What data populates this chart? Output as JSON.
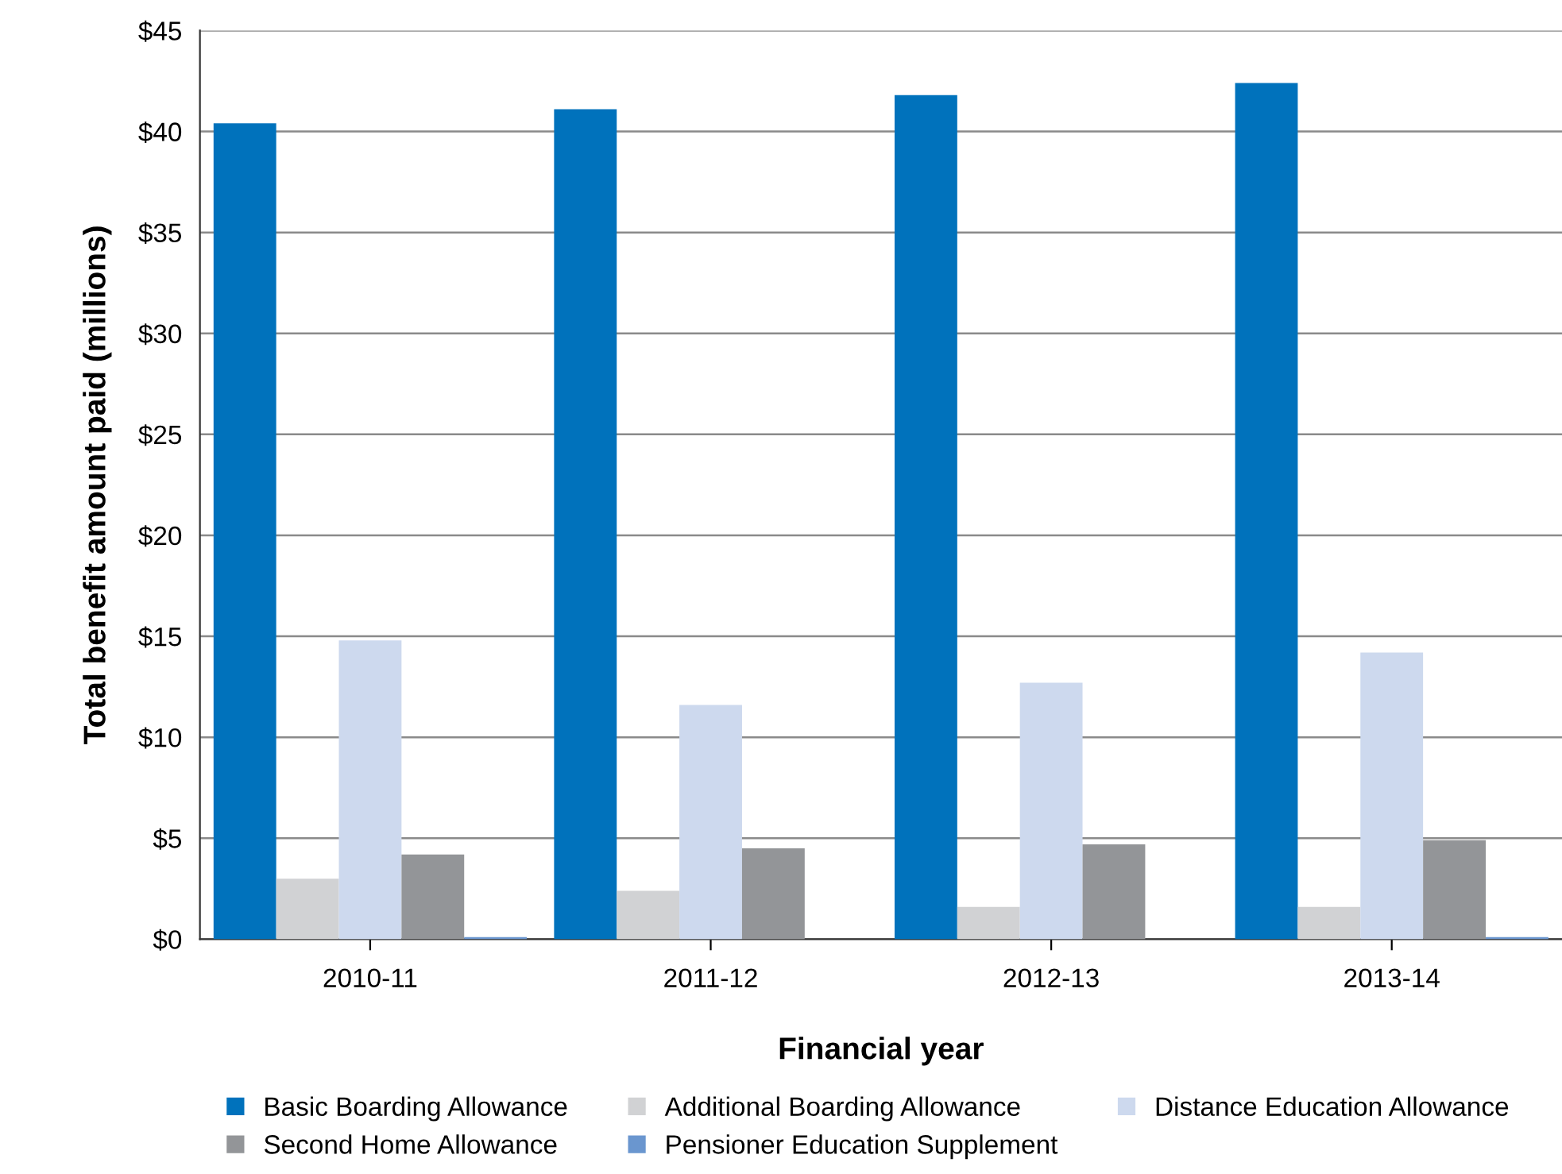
{
  "chart_data": {
    "type": "bar",
    "xlabel": "Financial year",
    "ylabel": "Total benefit amount paid (millions)",
    "categories": [
      "2010-11",
      "2011-12",
      "2012-13",
      "2013-14"
    ],
    "series": [
      {
        "name": "Basic Boarding Allowance",
        "color": "#0072bc",
        "values": [
          40.4,
          41.1,
          41.8,
          42.4
        ]
      },
      {
        "name": "Additional Boarding Allowance",
        "color": "#d1d2d4",
        "values": [
          3.0,
          2.4,
          1.6,
          1.6
        ]
      },
      {
        "name": "Distance Education Allowance",
        "color": "#cdd9ee",
        "values": [
          14.8,
          11.6,
          12.7,
          14.2
        ]
      },
      {
        "name": "Second Home Allowance",
        "color": "#939598",
        "values": [
          4.2,
          4.5,
          4.7,
          4.9
        ]
      },
      {
        "name": "Pensioner Education Supplement",
        "color": "#6a96cf",
        "values": [
          0.1,
          0,
          0,
          0.1
        ]
      }
    ],
    "ylim": [
      0,
      45
    ],
    "yticks": [
      {
        "value": 0,
        "label": "$0"
      },
      {
        "value": 5,
        "label": "$5"
      },
      {
        "value": 10,
        "label": "$10"
      },
      {
        "value": 15,
        "label": "$15"
      },
      {
        "value": 20,
        "label": "$20"
      },
      {
        "value": 25,
        "label": "$25"
      },
      {
        "value": 30,
        "label": "$30"
      },
      {
        "value": 35,
        "label": "$35"
      },
      {
        "value": 40,
        "label": "$40"
      },
      {
        "value": 45,
        "label": "$45"
      }
    ],
    "grid": "y",
    "legend": "bottom"
  }
}
